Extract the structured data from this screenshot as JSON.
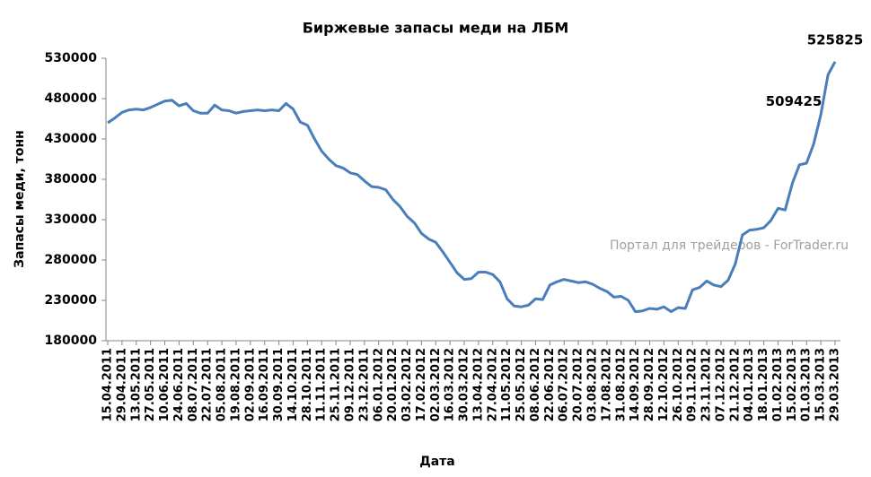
{
  "chart_data": {
    "type": "line",
    "title": "Биржевые запасы меди на ЛБМ",
    "x_label": "Дата",
    "y_label": "Запасы меди, тонн",
    "watermark": "Портал для трейдеров - ForTrader.ru",
    "categories": [
      "15.04.2011",
      null,
      "29.04.2011",
      null,
      "13.05.2011",
      null,
      "27.05.2011",
      null,
      "10.06.2011",
      null,
      "24.06.2011",
      null,
      "08.07.2011",
      null,
      "22.07.2011",
      null,
      "05.08.2011",
      null,
      "19.08.2011",
      null,
      "02.09.2011",
      null,
      "16.09.2011",
      null,
      "30.09.2011",
      null,
      "14.10.2011",
      null,
      "28.10.2011",
      null,
      "11.11.2011",
      null,
      "25.11.2011",
      null,
      "09.12.2011",
      null,
      "23.12.2011",
      null,
      "06.01.2012",
      null,
      "20.01.2012",
      null,
      "03.02.2012",
      null,
      "17.02.2012",
      null,
      "02.03.2012",
      null,
      "16.03.2012",
      null,
      "30.03.2012",
      null,
      "13.04.2012",
      null,
      "27.04.2012",
      null,
      "11.05.2012",
      null,
      "25.05.2012",
      null,
      "08.06.2012",
      null,
      "22.06.2012",
      null,
      "06.07.2012",
      null,
      "20.07.2012",
      null,
      "03.08.2012",
      null,
      "17.08.2012",
      null,
      "31.08.2012",
      null,
      "14.09.2012",
      null,
      "28.09.2012",
      null,
      "12.10.2012",
      null,
      "26.10.2012",
      null,
      "09.11.2012",
      null,
      "23.11.2012",
      null,
      "07.12.2012",
      null,
      "21.12.2012",
      null,
      "04.01.2013",
      null,
      "18.01.2013",
      null,
      "01.02.2013",
      null,
      "15.02.2013",
      null,
      "01.03.2013",
      null,
      "15.03.2013",
      null,
      "29.03.2013"
    ],
    "series": [
      {
        "name": "Запасы меди",
        "color": "#4a7ebb",
        "values": [
          450000,
          456000,
          463000,
          466000,
          467000,
          466000,
          469000,
          473000,
          477000,
          478000,
          471000,
          474000,
          465000,
          462000,
          462000,
          472000,
          466000,
          465000,
          462000,
          464000,
          465000,
          466000,
          465000,
          466000,
          465000,
          474000,
          467000,
          451000,
          447000,
          430000,
          415000,
          405000,
          397000,
          394000,
          388000,
          386000,
          378000,
          371000,
          370000,
          367000,
          355000,
          346000,
          334000,
          326000,
          313000,
          306000,
          302000,
          290000,
          277000,
          264000,
          256000,
          257000,
          265000,
          265000,
          262000,
          253000,
          232000,
          223000,
          222000,
          224000,
          232000,
          231000,
          249000,
          253000,
          256000,
          254000,
          252000,
          253000,
          250000,
          245000,
          241000,
          234000,
          235000,
          230000,
          216000,
          217000,
          220000,
          219000,
          222000,
          216000,
          221000,
          220000,
          243000,
          246000,
          254000,
          249000,
          247000,
          255000,
          275000,
          311000,
          317000,
          318000,
          320000,
          329000,
          344000,
          342000,
          375000,
          398000,
          400000,
          424000,
          460000,
          509425,
          525825
        ]
      }
    ],
    "ylim": [
      180000,
      530000
    ],
    "yticks": [
      180000,
      230000,
      280000,
      330000,
      380000,
      430000,
      480000,
      530000
    ],
    "labeled_points": [
      101,
      102
    ],
    "grid": false
  }
}
